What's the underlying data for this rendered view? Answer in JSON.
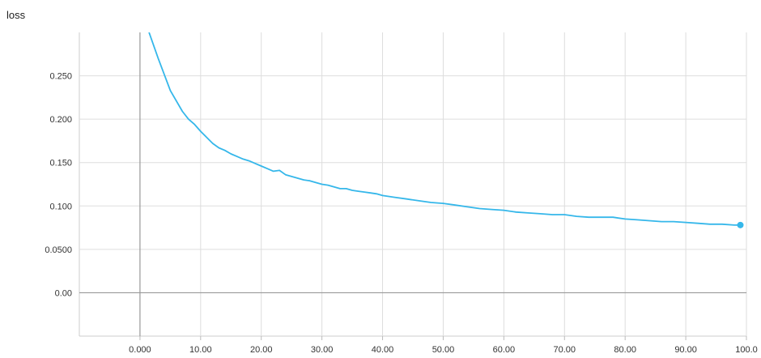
{
  "chart_data": {
    "type": "line",
    "title": "loss",
    "xlabel": "",
    "ylabel": "",
    "xlim": [
      -10,
      100
    ],
    "ylim": [
      -0.05,
      0.3
    ],
    "x_ticks": [
      0,
      10,
      20,
      30,
      40,
      50,
      60,
      70,
      80,
      90,
      100
    ],
    "x_tick_labels": [
      "0.000",
      "10.00",
      "20.00",
      "30.00",
      "40.00",
      "50.00",
      "60.00",
      "70.00",
      "80.00",
      "90.00",
      "100.0"
    ],
    "y_ticks": [
      0,
      0.05,
      0.1,
      0.15,
      0.2,
      0.25
    ],
    "y_tick_labels": [
      "0.00",
      "0.0500",
      "0.100",
      "0.150",
      "0.200",
      "0.250"
    ],
    "grid": true,
    "colors": {
      "series": "#35b7ea",
      "axis": "#999999",
      "grid": "#dddddd"
    },
    "series": [
      {
        "x": [
          1.5,
          3,
          5,
          7,
          8,
          9,
          10,
          11,
          12,
          13,
          14,
          15,
          16,
          17,
          18,
          19,
          20,
          21,
          22,
          23,
          24,
          25,
          26,
          27,
          28,
          29,
          30,
          31,
          32,
          33,
          34,
          35,
          36,
          37,
          38,
          39,
          40,
          42,
          44,
          46,
          48,
          50,
          52,
          54,
          56,
          58,
          60,
          62,
          64,
          66,
          68,
          70,
          72,
          74,
          76,
          78,
          80,
          82,
          84,
          86,
          88,
          90,
          92,
          94,
          96,
          98,
          99
        ],
        "y": [
          0.3,
          0.27,
          0.233,
          0.209,
          0.2,
          0.194,
          0.186,
          0.179,
          0.172,
          0.167,
          0.164,
          0.16,
          0.157,
          0.154,
          0.152,
          0.149,
          0.146,
          0.143,
          0.14,
          0.141,
          0.136,
          0.134,
          0.132,
          0.13,
          0.129,
          0.127,
          0.125,
          0.124,
          0.122,
          0.12,
          0.12,
          0.118,
          0.117,
          0.116,
          0.115,
          0.114,
          0.112,
          0.11,
          0.108,
          0.106,
          0.104,
          0.103,
          0.101,
          0.099,
          0.097,
          0.096,
          0.095,
          0.093,
          0.092,
          0.091,
          0.09,
          0.09,
          0.088,
          0.087,
          0.087,
          0.087,
          0.085,
          0.084,
          0.083,
          0.082,
          0.082,
          0.081,
          0.08,
          0.079,
          0.079,
          0.078,
          0.078
        ]
      }
    ]
  }
}
